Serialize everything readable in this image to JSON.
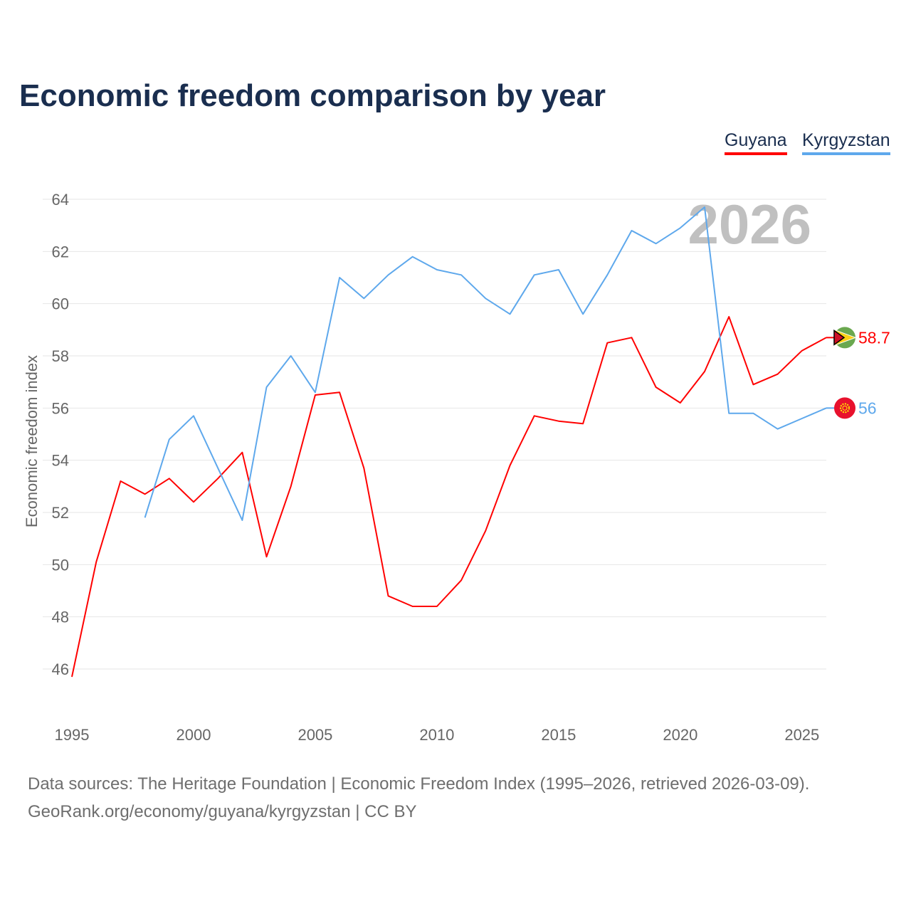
{
  "chart_data": {
    "type": "line",
    "title": "Economic freedom comparison by year",
    "xlabel": "",
    "ylabel": "Economic freedom index",
    "xlim": [
      1995,
      2026
    ],
    "ylim": [
      46,
      64
    ],
    "yticks": [
      46,
      48,
      50,
      52,
      54,
      56,
      58,
      60,
      62,
      64
    ],
    "xticks": [
      1995,
      2000,
      2005,
      2010,
      2015,
      2020,
      2025
    ],
    "grid": true,
    "legend_position": "top-right",
    "current_year_label": "2026",
    "series": [
      {
        "name": "Guyana",
        "color": "#ff0000",
        "end_label": "58.7",
        "flag": "guyana-flag",
        "x": [
          1995,
          1996,
          1997,
          1998,
          1999,
          2000,
          2001,
          2002,
          2003,
          2004,
          2005,
          2006,
          2007,
          2008,
          2009,
          2010,
          2011,
          2012,
          2013,
          2014,
          2015,
          2016,
          2017,
          2018,
          2019,
          2020,
          2021,
          2022,
          2023,
          2024,
          2025,
          2026
        ],
        "values": [
          45.7,
          50.1,
          53.2,
          52.7,
          53.3,
          52.4,
          53.3,
          54.3,
          50.3,
          53.0,
          56.5,
          56.6,
          53.7,
          48.8,
          48.4,
          48.4,
          49.4,
          51.3,
          53.8,
          55.7,
          55.5,
          55.4,
          58.5,
          58.7,
          56.8,
          56.2,
          57.4,
          59.5,
          56.9,
          57.3,
          58.2,
          58.7
        ]
      },
      {
        "name": "Kyrgyzstan",
        "color": "#5ea8ec",
        "end_label": "56",
        "flag": "kyrgyzstan-flag",
        "x": [
          1998,
          1999,
          2000,
          2001,
          2002,
          2003,
          2004,
          2005,
          2006,
          2007,
          2008,
          2009,
          2010,
          2011,
          2012,
          2013,
          2014,
          2015,
          2016,
          2017,
          2018,
          2019,
          2020,
          2021,
          2022,
          2023,
          2024,
          2025,
          2026
        ],
        "values": [
          51.8,
          54.8,
          55.7,
          53.7,
          51.7,
          56.8,
          58.0,
          56.6,
          61.0,
          60.2,
          61.1,
          61.8,
          61.3,
          61.1,
          60.2,
          59.6,
          61.1,
          61.3,
          59.6,
          61.1,
          62.8,
          62.3,
          62.9,
          63.7,
          55.8,
          55.8,
          55.2,
          55.6,
          56.0
        ]
      }
    ]
  },
  "footer": {
    "line1": "Data sources: The Heritage Foundation | Economic Freedom Index (1995–2026, retrieved 2026-03-09).",
    "line2": "GeoRank.org/economy/guyana/kyrgyzstan | CC BY"
  }
}
